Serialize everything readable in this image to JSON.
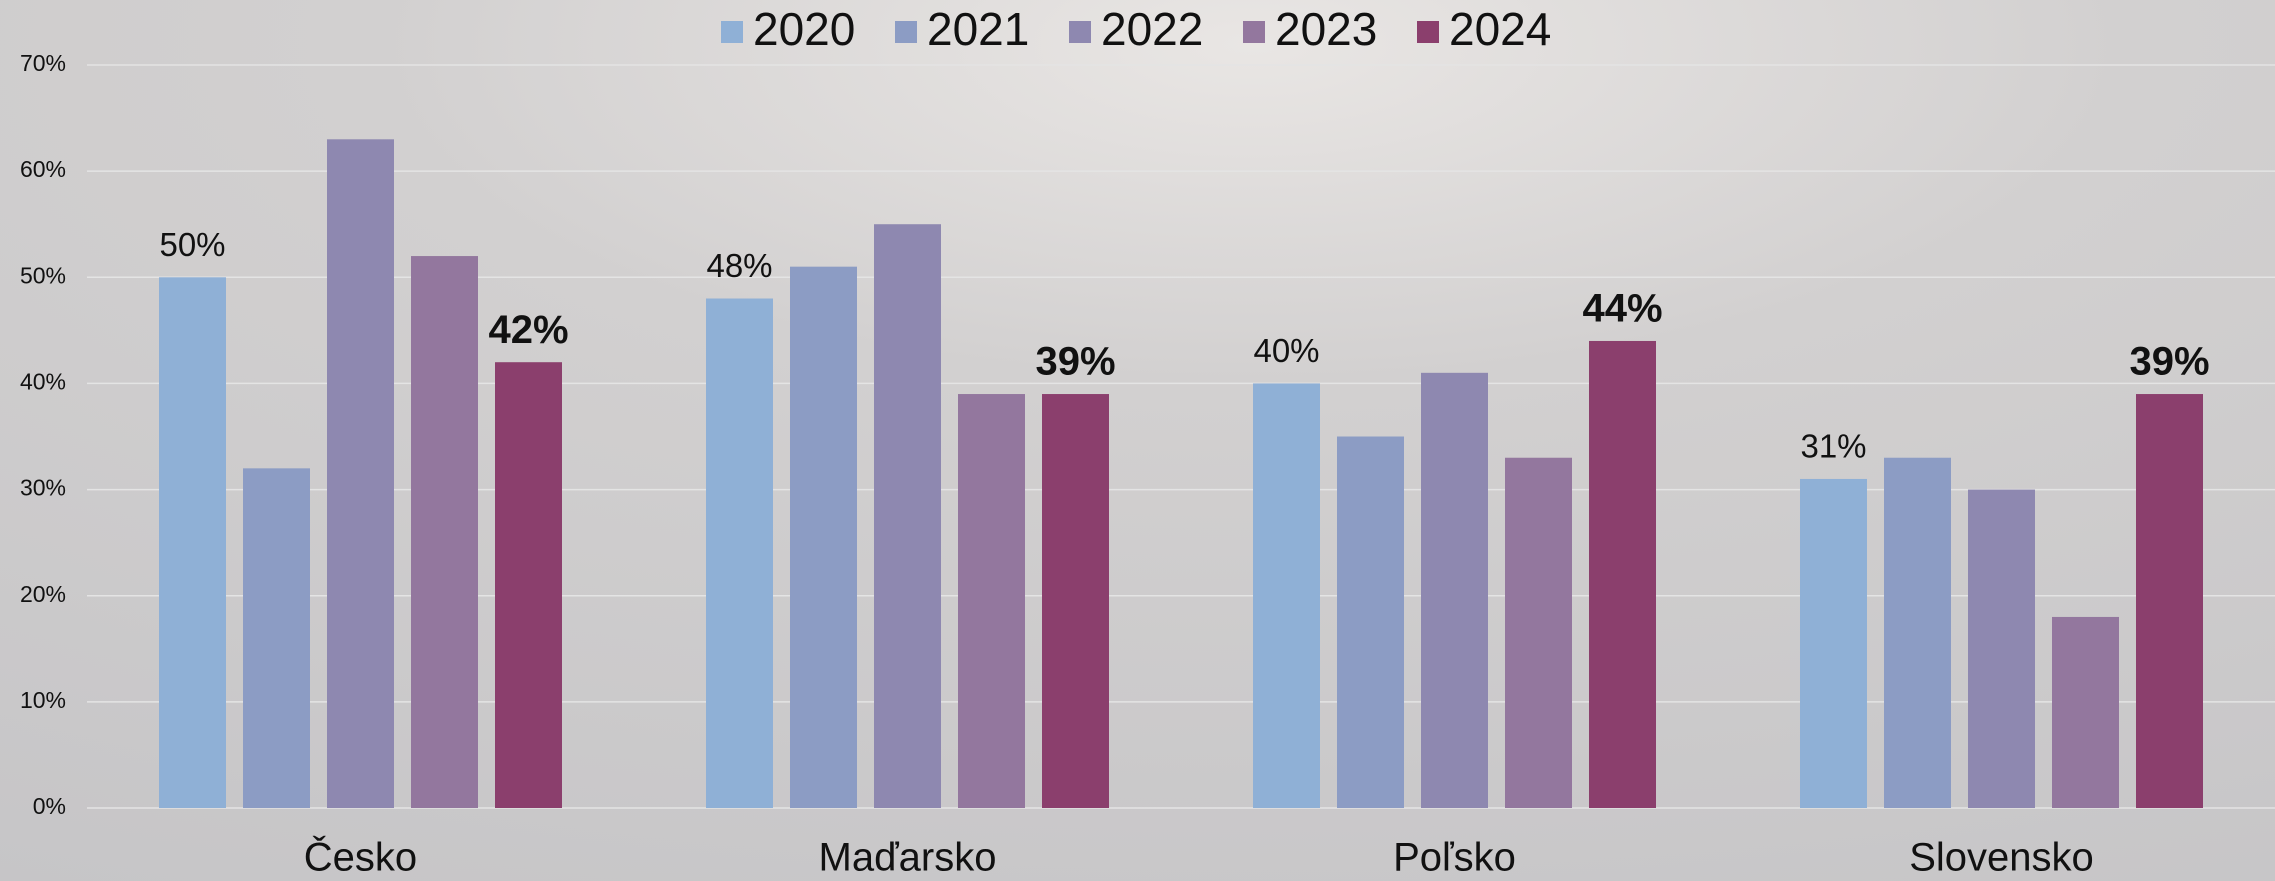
{
  "chart_data": {
    "type": "bar",
    "categories": [
      "Česko",
      "Maďarsko",
      "Poľsko",
      "Slovensko"
    ],
    "series": [
      {
        "name": "2020",
        "color": "#8fb0d6",
        "values": [
          50,
          48,
          40,
          31
        ],
        "value_labels": [
          "50%",
          "48%",
          "40%",
          "31%"
        ]
      },
      {
        "name": "2021",
        "color": "#8c9cc4",
        "values": [
          32,
          51,
          35,
          33
        ]
      },
      {
        "name": "2022",
        "color": "#8e88b0",
        "values": [
          63,
          55,
          41,
          30
        ]
      },
      {
        "name": "2023",
        "color": "#93779e",
        "values": [
          52,
          39,
          33,
          18
        ]
      },
      {
        "name": "2024",
        "color": "#8b3f6d",
        "values": [
          42,
          39,
          44,
          39
        ],
        "value_labels": [
          "42%",
          "39%",
          "44%",
          "39%"
        ]
      }
    ],
    "ylim": [
      0,
      70
    ],
    "yticks": [
      {
        "value": 0,
        "label": "0%"
      },
      {
        "value": 10,
        "label": "10%"
      },
      {
        "value": 20,
        "label": "20%"
      },
      {
        "value": 30,
        "label": "30%"
      },
      {
        "value": 40,
        "label": "40%"
      },
      {
        "value": 50,
        "label": "50%"
      },
      {
        "value": 60,
        "label": "60%"
      },
      {
        "value": 70,
        "label": "70%"
      }
    ],
    "grid": true,
    "legend": "top"
  }
}
